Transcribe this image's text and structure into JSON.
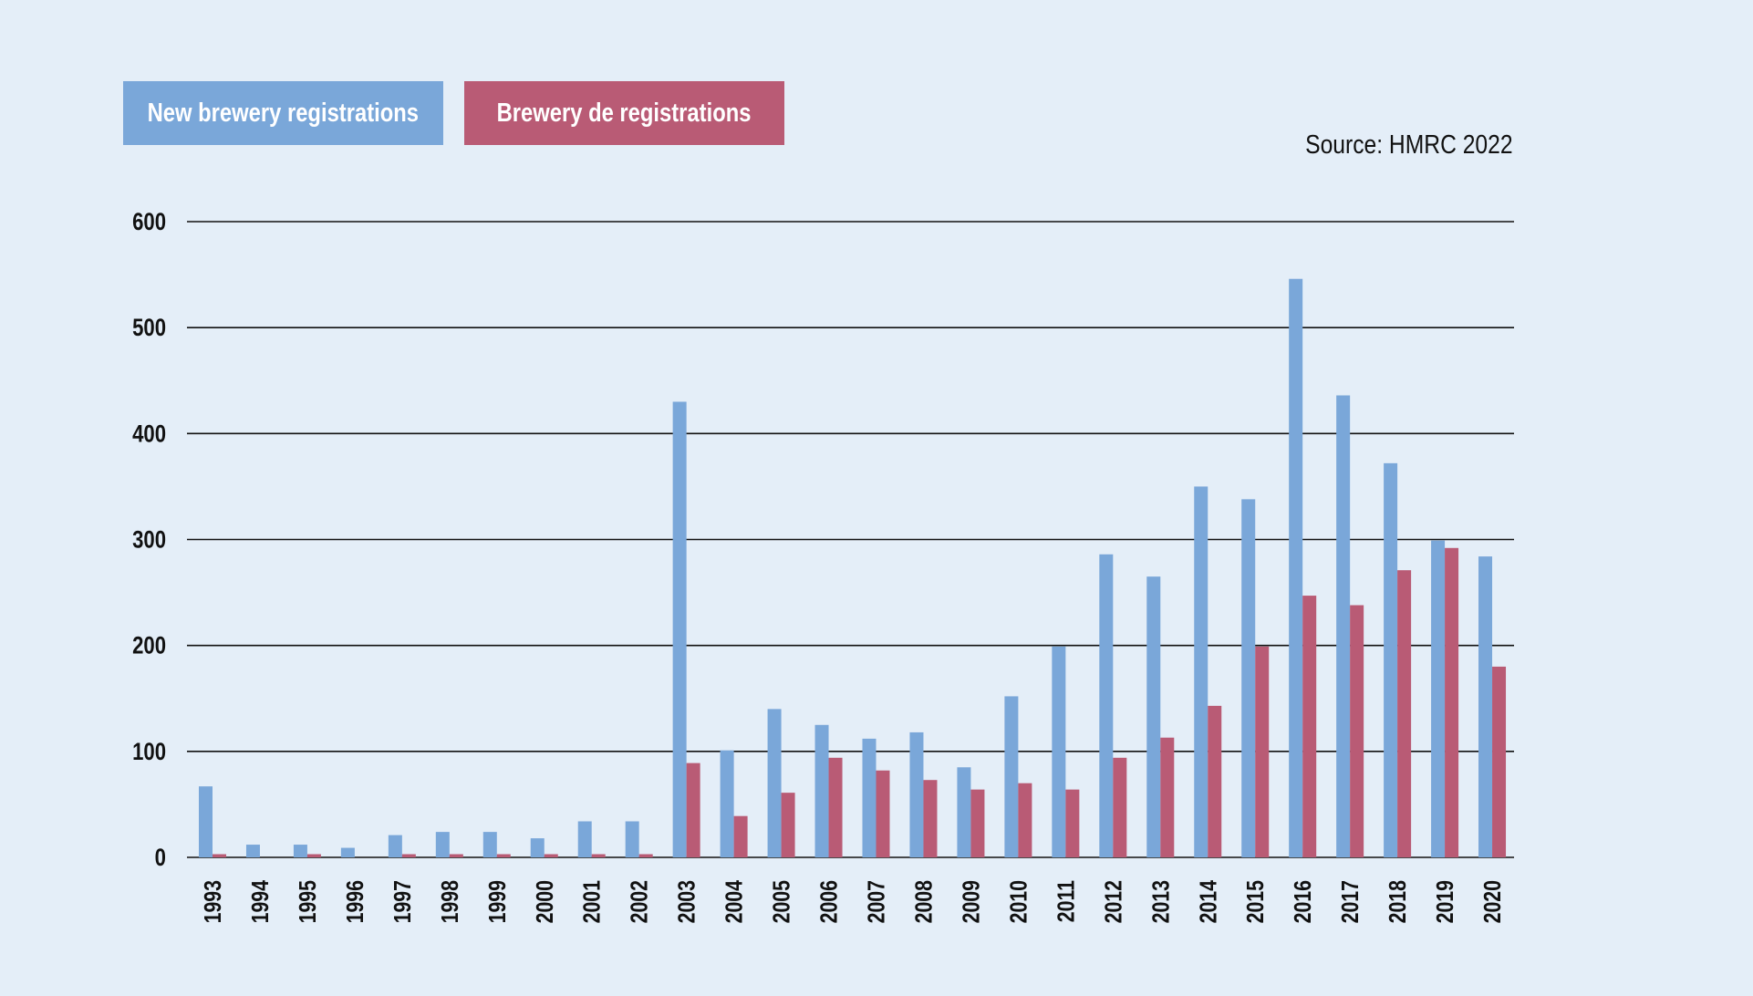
{
  "source_note": "Source: HMRC 2022",
  "colors": {
    "new": "#7aa7d9",
    "de": "#b95b75",
    "background": "#e4eef8",
    "grid": "#111111"
  },
  "chart_data": {
    "type": "bar",
    "categories": [
      "1993",
      "1994",
      "1995",
      "1996",
      "1997",
      "1998",
      "1999",
      "2000",
      "2001",
      "2002",
      "2003",
      "2004",
      "2005",
      "2006",
      "2007",
      "2008",
      "2009",
      "2010",
      "2011",
      "2012",
      "2013",
      "2014",
      "2015",
      "2016",
      "2017",
      "2018",
      "2019",
      "2020"
    ],
    "series": [
      {
        "name": "New brewery registrations",
        "values": [
          67,
          12,
          12,
          9,
          21,
          24,
          24,
          18,
          34,
          34,
          430,
          101,
          140,
          125,
          112,
          118,
          85,
          152,
          199,
          286,
          265,
          350,
          338,
          546,
          436,
          372,
          299,
          284
        ]
      },
      {
        "name": "Brewery de registrations",
        "values": [
          3,
          0,
          3,
          0,
          3,
          3,
          3,
          3,
          3,
          3,
          89,
          39,
          61,
          94,
          82,
          73,
          64,
          70,
          64,
          94,
          113,
          143,
          199,
          247,
          238,
          271,
          292,
          180
        ]
      }
    ],
    "yticks": [
      0,
      100,
      200,
      300,
      400,
      500,
      600
    ],
    "ylim": [
      0,
      600
    ],
    "grid": true,
    "legend_position": "top-left"
  }
}
